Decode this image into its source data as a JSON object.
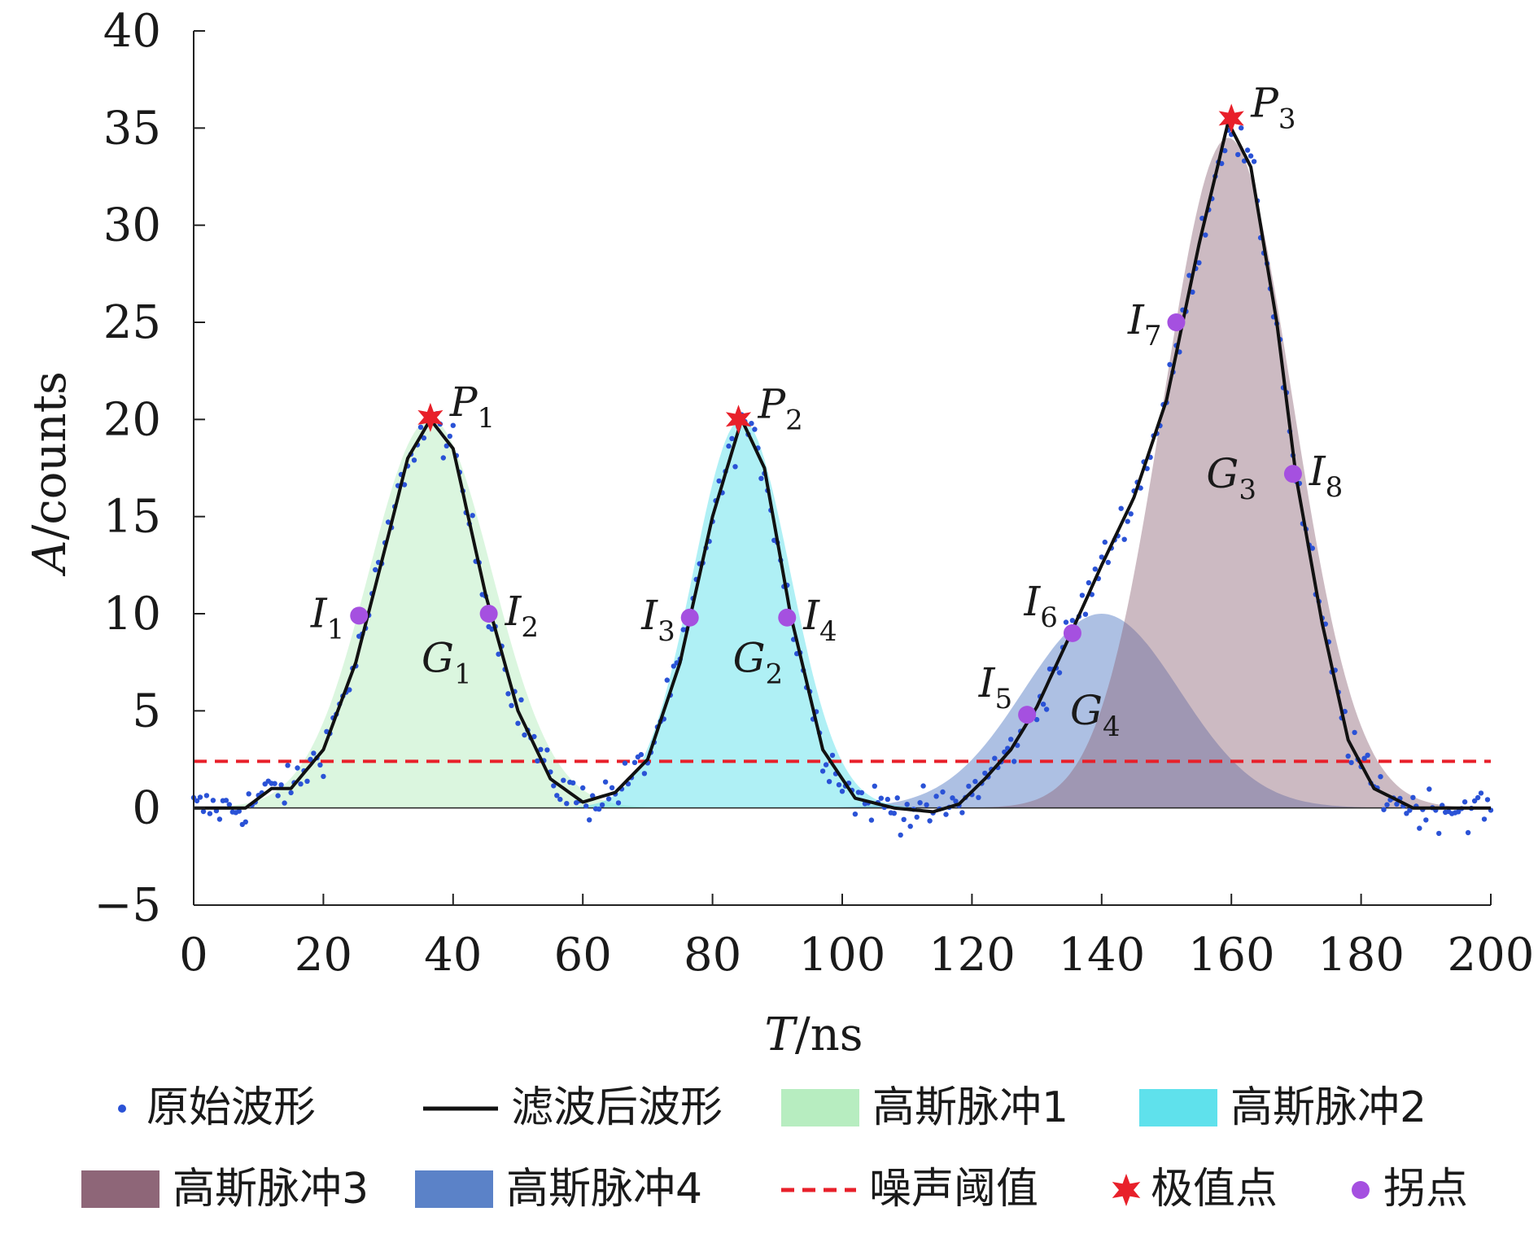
{
  "chart_data": {
    "type": "line",
    "xlabel_italic": "T",
    "xlabel_unit": "/ns",
    "ylabel_italic": "A",
    "ylabel_unit": "/counts",
    "xlim": [
      0,
      200
    ],
    "ylim": [
      -5,
      40
    ],
    "xticks": [
      0,
      20,
      40,
      60,
      80,
      100,
      120,
      140,
      160,
      180,
      200
    ],
    "yticks": [
      -5,
      0,
      5,
      10,
      15,
      20,
      25,
      30,
      35,
      40
    ],
    "ytick_labels": [
      "−5",
      "0",
      "5",
      "10",
      "15",
      "20",
      "25",
      "30",
      "35",
      "40"
    ],
    "grid": false,
    "colors": {
      "raw": "#2a52d6",
      "filtered": "#111111",
      "g1": "#b7edc0",
      "g2": "#5fe1ec",
      "g3": "#8e6678",
      "g4": "#5b82c8",
      "threshold": "#e8202a",
      "extremum": "#e8202a",
      "inflection": "#a550e0"
    },
    "gaussians": [
      {
        "name": "高斯脉冲1",
        "label": "G",
        "sub": "1",
        "amplitude": 20,
        "center": 36.5,
        "sigma": 9.5,
        "label_x": 39,
        "label_y": 7
      },
      {
        "name": "高斯脉冲2",
        "label": "G",
        "sub": "2",
        "amplitude": 20,
        "center": 84.5,
        "sigma": 7.5,
        "label_x": 87,
        "label_y": 7
      },
      {
        "name": "高斯脉冲3",
        "label": "G",
        "sub": "3",
        "amplitude": 34.5,
        "center": 159.5,
        "sigma": 10,
        "label_x": 160,
        "label_y": 16.5
      },
      {
        "name": "高斯脉冲4",
        "label": "G",
        "sub": "4",
        "amplitude": 10,
        "center": 140,
        "sigma": 12,
        "label_x": 139,
        "label_y": 4.3
      }
    ],
    "filtered_waveform": [
      [
        0,
        0
      ],
      [
        5,
        0
      ],
      [
        8,
        0
      ],
      [
        12,
        1
      ],
      [
        15,
        1
      ],
      [
        20,
        3
      ],
      [
        25,
        7.5
      ],
      [
        30,
        14
      ],
      [
        33,
        18
      ],
      [
        36.5,
        20
      ],
      [
        40,
        18.5
      ],
      [
        45,
        11
      ],
      [
        50,
        5
      ],
      [
        55,
        1.5
      ],
      [
        60,
        0.3
      ],
      [
        65,
        0.8
      ],
      [
        70,
        2.5
      ],
      [
        75,
        7.5
      ],
      [
        80,
        15
      ],
      [
        84.5,
        20
      ],
      [
        88,
        17.5
      ],
      [
        92,
        10
      ],
      [
        97,
        3
      ],
      [
        102,
        0.5
      ],
      [
        108,
        0
      ],
      [
        114,
        -0.2
      ],
      [
        118,
        0.2
      ],
      [
        122,
        1.5
      ],
      [
        126,
        3
      ],
      [
        130,
        5.2
      ],
      [
        135,
        8.8
      ],
      [
        140,
        12.5
      ],
      [
        145,
        16
      ],
      [
        150,
        21
      ],
      [
        155,
        29
      ],
      [
        159.5,
        35.3
      ],
      [
        163,
        33
      ],
      [
        167,
        25
      ],
      [
        170,
        17
      ],
      [
        174,
        9.5
      ],
      [
        178,
        3.5
      ],
      [
        182,
        1
      ],
      [
        188,
        0
      ],
      [
        194,
        0
      ],
      [
        200,
        0
      ]
    ],
    "raw_noise": 0.75,
    "raw_step": 0.5,
    "threshold": 2.4,
    "extrema": [
      {
        "label": "P",
        "sub": "1",
        "x": 36.5,
        "y": 20.1
      },
      {
        "label": "P",
        "sub": "2",
        "x": 84,
        "y": 20
      },
      {
        "label": "P",
        "sub": "3",
        "x": 160,
        "y": 35.5
      }
    ],
    "inflections": [
      {
        "label": "I",
        "sub": "1",
        "x": 25.5,
        "y": 9.9
      },
      {
        "label": "I",
        "sub": "2",
        "x": 45.5,
        "y": 10
      },
      {
        "label": "I",
        "sub": "3",
        "x": 76.5,
        "y": 9.8
      },
      {
        "label": "I",
        "sub": "4",
        "x": 91.5,
        "y": 9.8
      },
      {
        "label": "I",
        "sub": "5",
        "x": 128.5,
        "y": 4.8
      },
      {
        "label": "I",
        "sub": "6",
        "x": 135.5,
        "y": 9
      },
      {
        "label": "I",
        "sub": "7",
        "x": 151.5,
        "y": 25
      },
      {
        "label": "I",
        "sub": "8",
        "x": 169.5,
        "y": 17.2
      }
    ],
    "legend": [
      {
        "key": "raw",
        "label": "原始波形",
        "marker": "dot"
      },
      {
        "key": "filtered",
        "label": "滤波后波形",
        "marker": "line"
      },
      {
        "key": "g1",
        "label": "高斯脉冲1",
        "marker": "box"
      },
      {
        "key": "g2",
        "label": "高斯脉冲2",
        "marker": "box"
      },
      {
        "key": "g3",
        "label": "高斯脉冲3",
        "marker": "box"
      },
      {
        "key": "g4",
        "label": "高斯脉冲4",
        "marker": "box"
      },
      {
        "key": "threshold",
        "label": "噪声阈值",
        "marker": "dash"
      },
      {
        "key": "extremum",
        "label": "极值点",
        "marker": "star"
      },
      {
        "key": "inflection",
        "label": "拐点",
        "marker": "circle"
      }
    ]
  }
}
